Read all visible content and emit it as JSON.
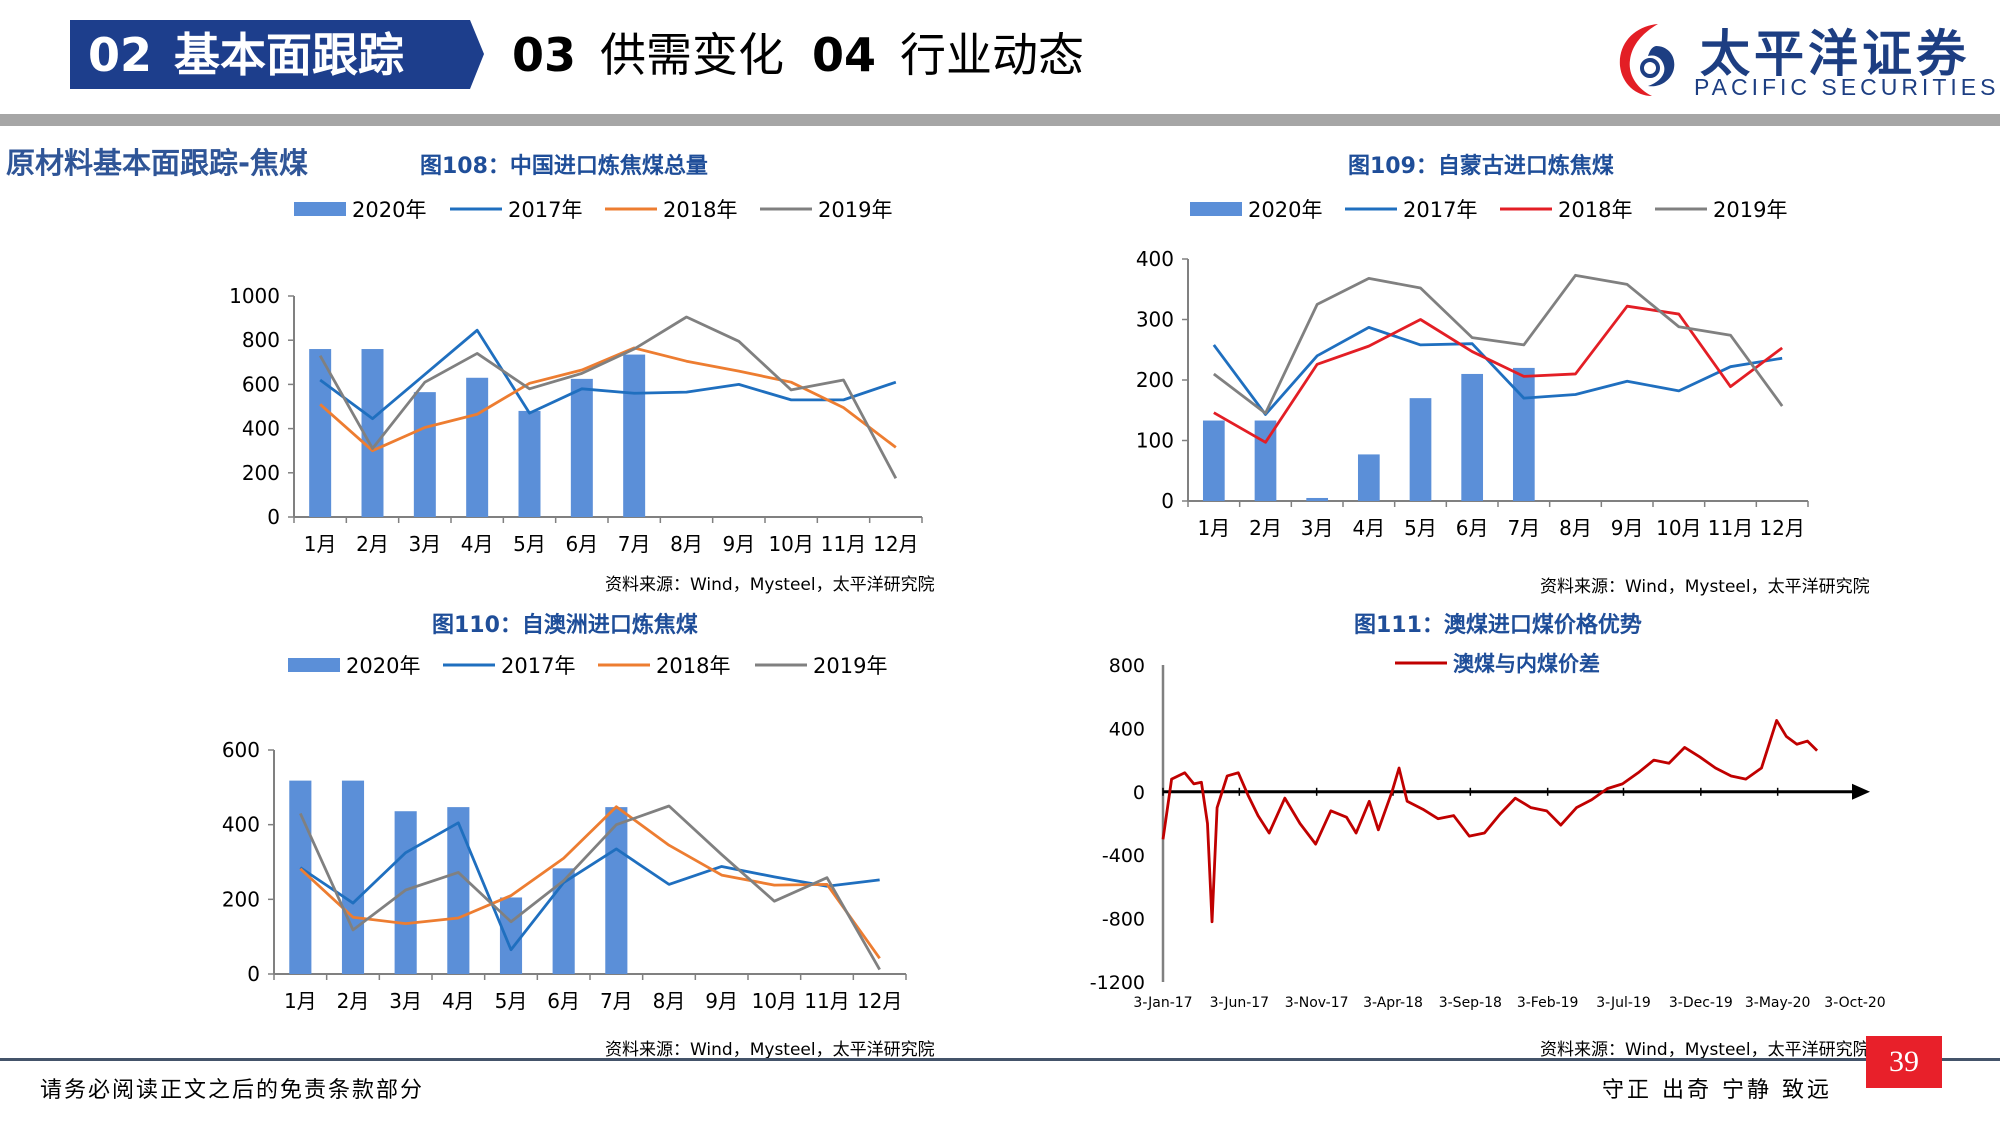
{
  "header": {
    "active_tab": {
      "num": "02",
      "label": "基本面跟踪"
    },
    "tabs": [
      {
        "num": "03",
        "label": "供需变化"
      },
      {
        "num": "04",
        "label": "行业动态"
      }
    ],
    "logo": {
      "cn": "太平洋证券",
      "en": "PACIFIC SECURITIES"
    },
    "colors": {
      "tab": "#1d3e8c",
      "logo": "#1d3e82",
      "logo_red": "#e31e25",
      "bar": "#a6a6a6"
    }
  },
  "section_title": "原材料基本面跟踪-焦煤",
  "footer": {
    "disclaimer": "请务必阅读正文之后的免责条款部分",
    "slogan": "守正 出奇 宁静 致远",
    "page_number": "39"
  },
  "chart_data": [
    {
      "id": "fig108",
      "type": "bar+line",
      "title": "图108：中国进口炼焦煤总量",
      "source": "资料来源：Wind，Mysteel，太平洋研究院",
      "categories": [
        "1月",
        "2月",
        "3月",
        "4月",
        "5月",
        "6月",
        "7月",
        "8月",
        "9月",
        "10月",
        "11月",
        "12月"
      ],
      "ylim": [
        0,
        1000
      ],
      "yticks": [
        0,
        200,
        400,
        600,
        800,
        1000
      ],
      "grid": false,
      "legend_position": "top",
      "bar_series": {
        "name": "2020年",
        "color": "#5b8fd8",
        "values": [
          760,
          760,
          565,
          630,
          480,
          625,
          735,
          null,
          null,
          null,
          null,
          null
        ]
      },
      "series": [
        {
          "name": "2017年",
          "color": "#1f6fbf",
          "values": [
            620,
            445,
            645,
            845,
            470,
            580,
            560,
            565,
            600,
            530,
            530,
            610
          ]
        },
        {
          "name": "2018年",
          "color": "#ed7d31",
          "values": [
            510,
            300,
            405,
            465,
            605,
            665,
            765,
            705,
            660,
            610,
            495,
            315
          ]
        },
        {
          "name": "2019年",
          "color": "#808080",
          "values": [
            730,
            310,
            610,
            740,
            580,
            650,
            760,
            905,
            795,
            575,
            620,
            175
          ]
        }
      ]
    },
    {
      "id": "fig109",
      "type": "bar+line",
      "title": "图109：自蒙古进口炼焦煤",
      "source": "资料来源：Wind，Mysteel，太平洋研究院",
      "categories": [
        "1月",
        "2月",
        "3月",
        "4月",
        "5月",
        "6月",
        "7月",
        "8月",
        "9月",
        "10月",
        "11月",
        "12月"
      ],
      "ylim": [
        0,
        400
      ],
      "yticks": [
        0,
        100,
        200,
        300,
        400
      ],
      "grid": false,
      "legend_position": "top",
      "bar_series": {
        "name": "2020年",
        "color": "#5b8fd8",
        "values": [
          133,
          133,
          5,
          77,
          170,
          210,
          220,
          null,
          null,
          null,
          null,
          null
        ]
      },
      "series": [
        {
          "name": "2017年",
          "color": "#1f6fbf",
          "values": [
            258,
            143,
            240,
            287,
            258,
            260,
            170,
            176,
            198,
            182,
            222,
            236
          ]
        },
        {
          "name": "2018年",
          "color": "#e31e25",
          "values": [
            146,
            97,
            226,
            256,
            300,
            247,
            206,
            210,
            322,
            309,
            189,
            253
          ]
        },
        {
          "name": "2019年",
          "color": "#808080",
          "values": [
            210,
            145,
            325,
            368,
            352,
            270,
            258,
            373,
            358,
            288,
            274,
            157
          ]
        }
      ]
    },
    {
      "id": "fig110",
      "type": "bar+line",
      "title": "图110：自澳洲进口炼焦煤",
      "source": "资料来源：Wind，Mysteel，太平洋研究院",
      "categories": [
        "1月",
        "2月",
        "3月",
        "4月",
        "5月",
        "6月",
        "7月",
        "8月",
        "9月",
        "10月",
        "11月",
        "12月"
      ],
      "ylim": [
        0,
        600
      ],
      "yticks": [
        0,
        200,
        400,
        600
      ],
      "grid": false,
      "legend_position": "top",
      "bar_series": {
        "name": "2020年",
        "color": "#5b8fd8",
        "values": [
          518,
          518,
          436,
          447,
          205,
          283,
          447,
          null,
          null,
          null,
          null,
          null
        ]
      },
      "series": [
        {
          "name": "2017年",
          "color": "#1f6fbf",
          "values": [
            285,
            190,
            325,
            405,
            65,
            245,
            335,
            240,
            288,
            260,
            235,
            252
          ]
        },
        {
          "name": "2018年",
          "color": "#ed7d31",
          "values": [
            282,
            152,
            135,
            150,
            210,
            310,
            448,
            345,
            265,
            238,
            240,
            42
          ]
        },
        {
          "name": "2019年",
          "color": "#808080",
          "values": [
            430,
            118,
            225,
            272,
            140,
            250,
            400,
            450,
            320,
            195,
            258,
            12
          ]
        }
      ]
    },
    {
      "id": "fig111",
      "type": "line",
      "title": "图111：澳煤进口煤价格优势",
      "source": "资料来源：Wind，Mysteel，太平洋研究院",
      "ylim": [
        -1200,
        800
      ],
      "yticks": [
        -1200,
        -800,
        -400,
        0,
        400,
        800
      ],
      "xticks": [
        "3-Jan-17",
        "3-Jun-17",
        "3-Nov-17",
        "3-Apr-18",
        "3-Sep-18",
        "3-Feb-19",
        "3-Jul-19",
        "3-Dec-19",
        "3-May-20",
        "3-Oct-20"
      ],
      "grid": false,
      "legend_position": "top",
      "series": [
        {
          "name": "澳煤与内煤价差",
          "color": "#c00000",
          "x": [
            "2017-01-03",
            "2017-01-20",
            "2017-02-15",
            "2017-03-05",
            "2017-03-20",
            "2017-04-01",
            "2017-04-10",
            "2017-04-20",
            "2017-05-10",
            "2017-06-01",
            "2017-06-20",
            "2017-07-10",
            "2017-08-01",
            "2017-09-01",
            "2017-10-01",
            "2017-11-01",
            "2017-12-01",
            "2018-01-01",
            "2018-01-20",
            "2018-02-15",
            "2018-03-05",
            "2018-04-01",
            "2018-04-15",
            "2018-05-01",
            "2018-06-01",
            "2018-07-01",
            "2018-08-01",
            "2018-09-01",
            "2018-10-01",
            "2018-11-01",
            "2018-12-01",
            "2019-01-01",
            "2019-02-01",
            "2019-03-01",
            "2019-04-01",
            "2019-05-01",
            "2019-06-01",
            "2019-07-01",
            "2019-08-01",
            "2019-09-01",
            "2019-10-01",
            "2019-11-01",
            "2019-12-01",
            "2020-01-01",
            "2020-02-01",
            "2020-03-01",
            "2020-04-01",
            "2020-05-01",
            "2020-05-20",
            "2020-06-10",
            "2020-07-01",
            "2020-07-20"
          ],
          "y": [
            -300,
            80,
            120,
            50,
            60,
            -200,
            -820,
            -100,
            100,
            120,
            -20,
            -150,
            -260,
            -40,
            -200,
            -330,
            -120,
            -160,
            -260,
            -60,
            -240,
            0,
            150,
            -60,
            -110,
            -170,
            -150,
            -280,
            -260,
            -140,
            -40,
            -100,
            -120,
            -210,
            -100,
            -50,
            20,
            50,
            120,
            200,
            180,
            280,
            220,
            150,
            100,
            80,
            150,
            450,
            350,
            300,
            320,
            260
          ]
        }
      ]
    }
  ]
}
